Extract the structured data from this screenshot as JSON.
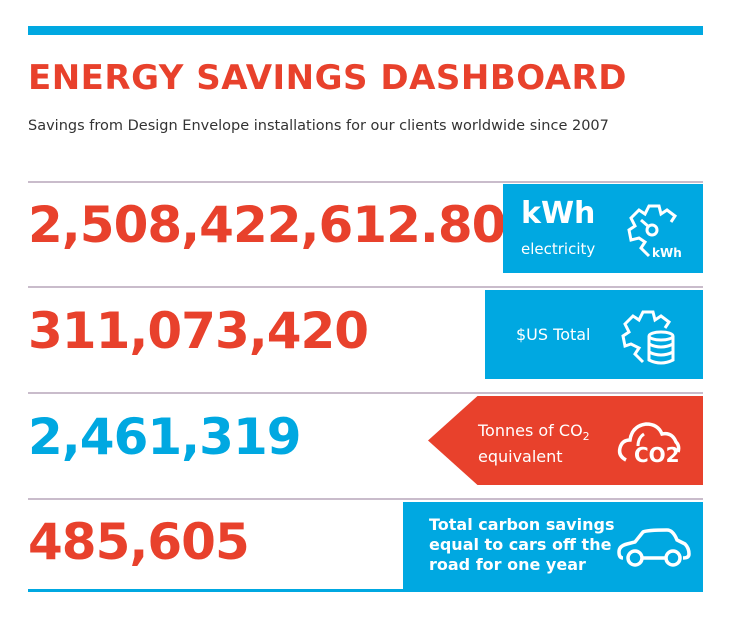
{
  "header": {
    "title": "ENERGY SAVINGS DASHBOARD",
    "subtitle": "Savings from Design Envelope installations for our clients worldwide since 2007"
  },
  "colors": {
    "red": "#e8412c",
    "blue": "#00a8e1"
  },
  "stats": [
    {
      "value": "2,508,422,612.80",
      "label_big": "kWh",
      "label": "electricity",
      "icon_text": "kWh",
      "icon": "gear-gauge-icon",
      "value_color": "#e8412c",
      "box_color": "#00a8e1"
    },
    {
      "value": "311,073,420",
      "label": "$US Total",
      "icon": "gear-database-icon",
      "value_color": "#e8412c",
      "box_color": "#00a8e1"
    },
    {
      "value": "2,461,319",
      "label_line1": "Tonnes of CO",
      "label_sub": "2",
      "label_line2": "equivalent",
      "icon_text": "CO2",
      "icon": "cloud-co2-icon",
      "value_color": "#00a8e1",
      "box_color": "#e8412c"
    },
    {
      "value": "485,605",
      "label_lines": [
        "Total carbon savings",
        "equal to cars off the",
        "road for one year"
      ],
      "icon": "car-icon",
      "value_color": "#e8412c",
      "box_color": "#00a8e1"
    }
  ]
}
